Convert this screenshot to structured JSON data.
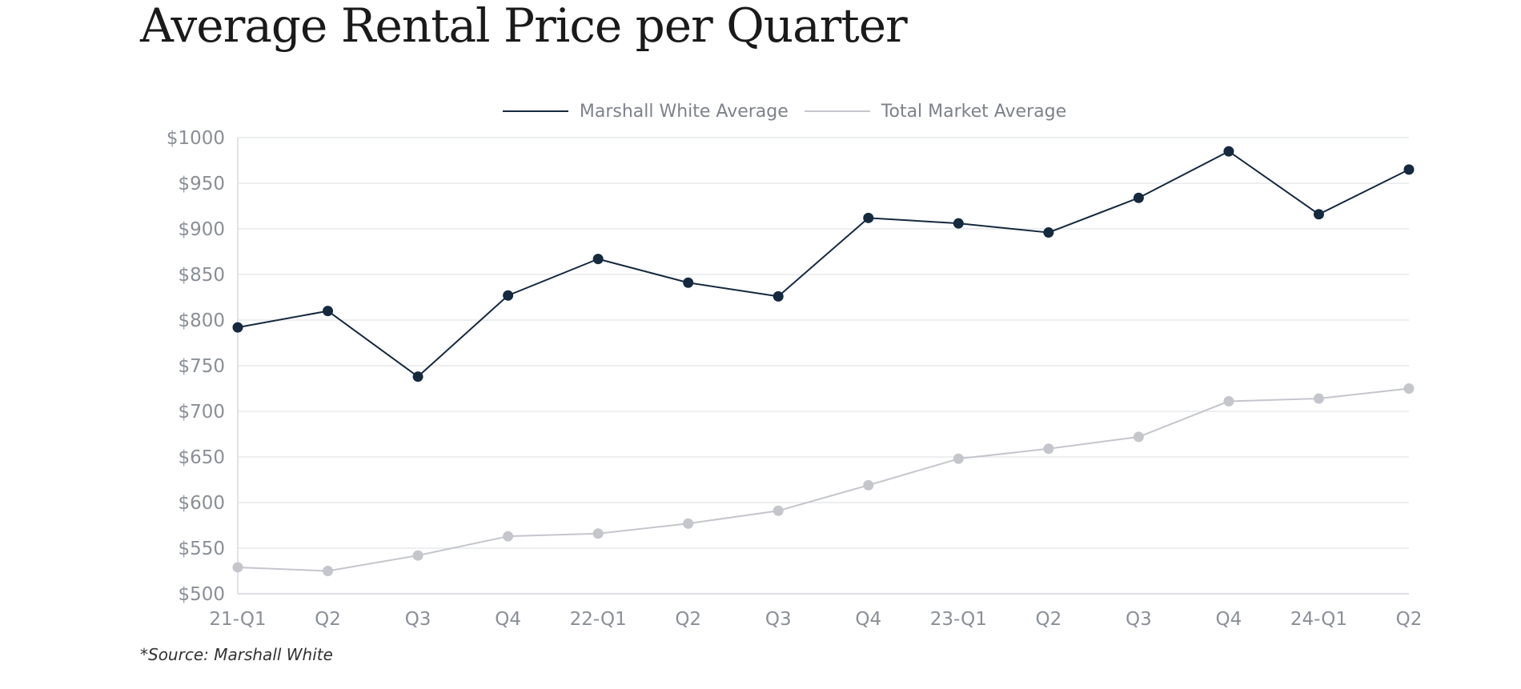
{
  "chart_data": {
    "type": "line",
    "title": "Average Rental Price per Quarter",
    "categories": [
      "21-Q1",
      "Q2",
      "Q3",
      "Q4",
      "22-Q1",
      "Q2",
      "Q3",
      "Q4",
      "23-Q1",
      "Q2",
      "Q3",
      "Q4",
      "24-Q1",
      "Q2"
    ],
    "series": [
      {
        "name": "Marshall White Average",
        "color": "#15293f",
        "values": [
          792,
          810,
          738,
          827,
          867,
          841,
          826,
          912,
          906,
          896,
          934,
          985,
          916,
          965
        ]
      },
      {
        "name": "Total Market Average",
        "color": "#c4c6cc",
        "values": [
          529,
          525,
          542,
          563,
          566,
          577,
          591,
          619,
          648,
          659,
          672,
          711,
          714,
          725
        ]
      }
    ],
    "yticks": [
      "$1000",
      "$950",
      "$900",
      "$850",
      "$800",
      "$750",
      "$700",
      "$650",
      "$600",
      "$550",
      "$500"
    ],
    "ylim": [
      500,
      1000
    ],
    "grid": true,
    "legend_position": "top-center",
    "xlabel": "",
    "ylabel": ""
  },
  "footer": {
    "source": "*Source: Marshall White"
  }
}
